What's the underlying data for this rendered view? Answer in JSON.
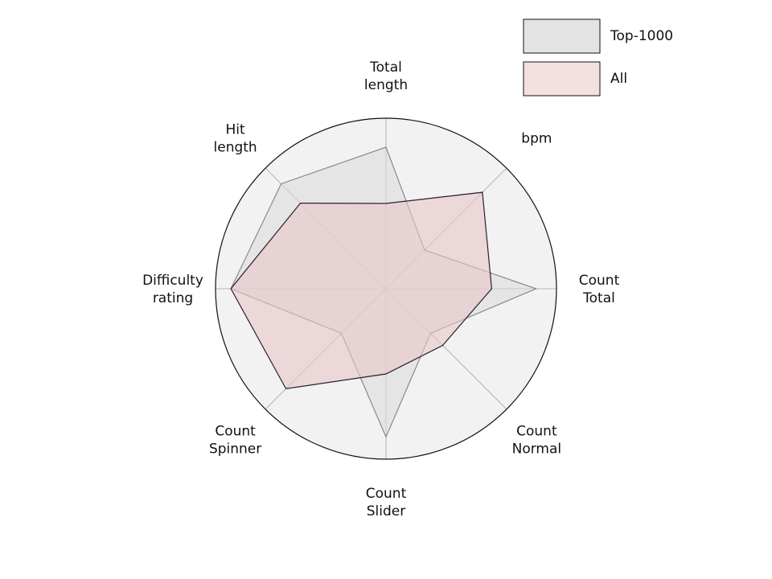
{
  "chart_data": {
    "type": "radar",
    "axes": [
      "Total\nlength",
      "bpm",
      "Count\nTotal",
      "Count\nNormal",
      "Count\nSlider",
      "Count\nSpinner",
      "Difficulty\nrating",
      "Hit\nlength"
    ],
    "rlim": [
      0,
      1
    ],
    "grid": true,
    "legend_position": "top-right",
    "series": [
      {
        "name": "Top-1000",
        "values": [
          0.83,
          0.32,
          0.88,
          0.37,
          0.87,
          0.37,
          0.91,
          0.87
        ],
        "color": "#dcdcdc",
        "stroke": "#8a8a8a"
      },
      {
        "name": "All",
        "values": [
          0.5,
          0.8,
          0.62,
          0.47,
          0.5,
          0.83,
          0.91,
          0.71
        ],
        "color": "#e7c6c6",
        "stroke": "#2a1f2f"
      }
    ]
  }
}
